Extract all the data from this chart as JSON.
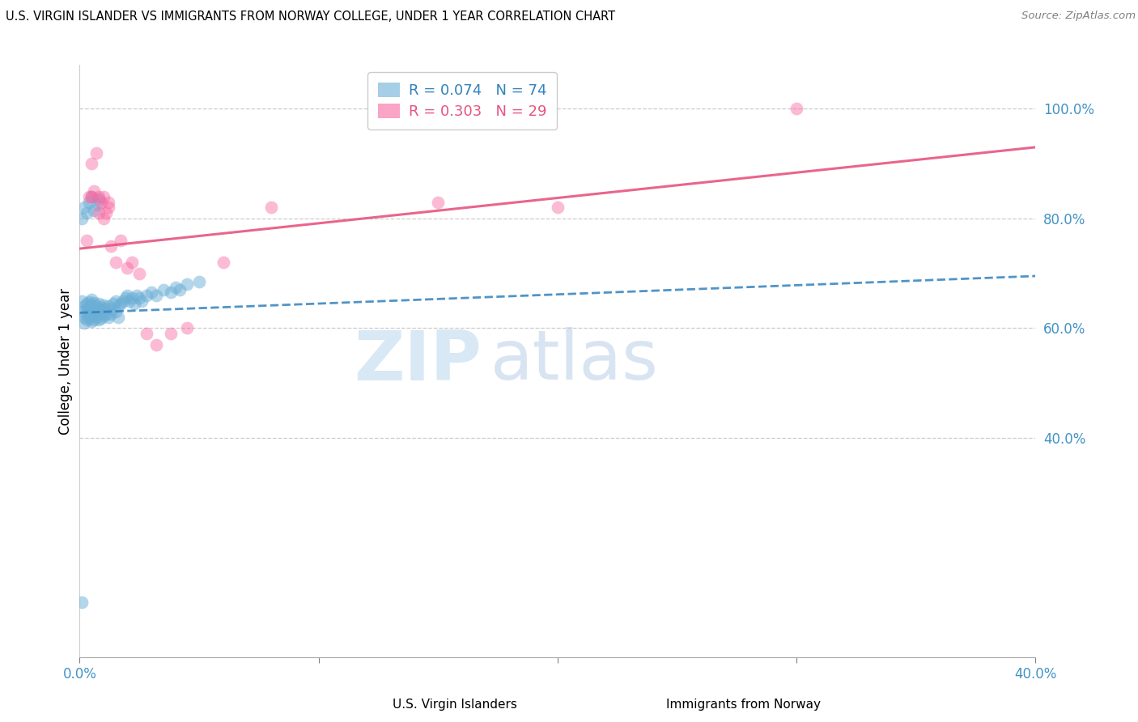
{
  "title": "U.S. VIRGIN ISLANDER VS IMMIGRANTS FROM NORWAY COLLEGE, UNDER 1 YEAR CORRELATION CHART",
  "source": "Source: ZipAtlas.com",
  "ylabel": "College, Under 1 year",
  "x_min": 0.0,
  "x_max": 0.4,
  "y_min": 0.0,
  "y_max": 1.08,
  "x_ticks": [
    0.0,
    0.1,
    0.2,
    0.3,
    0.4
  ],
  "x_tick_labels": [
    "0.0%",
    "",
    "",
    "",
    "40.0%"
  ],
  "y_ticks_right": [
    0.4,
    0.6,
    0.8,
    1.0
  ],
  "y_tick_labels_right": [
    "40.0%",
    "60.0%",
    "80.0%",
    "100.0%"
  ],
  "legend_blue_r": "0.074",
  "legend_blue_n": "74",
  "legend_pink_r": "0.303",
  "legend_pink_n": "29",
  "legend_label_blue": "U.S. Virgin Islanders",
  "legend_label_pink": "Immigrants from Norway",
  "blue_color": "#6baed6",
  "pink_color": "#f768a1",
  "blue_line_color": "#3182bd",
  "pink_line_color": "#e75480",
  "watermark_zip": "ZIP",
  "watermark_atlas": "atlas",
  "blue_scatter_x": [
    0.001,
    0.001,
    0.002,
    0.002,
    0.002,
    0.003,
    0.003,
    0.003,
    0.003,
    0.004,
    0.004,
    0.004,
    0.004,
    0.005,
    0.005,
    0.005,
    0.005,
    0.005,
    0.006,
    0.006,
    0.006,
    0.006,
    0.007,
    0.007,
    0.007,
    0.008,
    0.008,
    0.008,
    0.008,
    0.009,
    0.009,
    0.009,
    0.01,
    0.01,
    0.01,
    0.011,
    0.011,
    0.012,
    0.012,
    0.013,
    0.013,
    0.014,
    0.015,
    0.015,
    0.016,
    0.016,
    0.017,
    0.018,
    0.019,
    0.02,
    0.021,
    0.022,
    0.023,
    0.024,
    0.025,
    0.026,
    0.028,
    0.03,
    0.032,
    0.035,
    0.038,
    0.04,
    0.042,
    0.045,
    0.05,
    0.001,
    0.002,
    0.003,
    0.004,
    0.005,
    0.006,
    0.007,
    0.008,
    0.001
  ],
  "blue_scatter_y": [
    0.63,
    0.65,
    0.62,
    0.64,
    0.61,
    0.625,
    0.635,
    0.645,
    0.615,
    0.628,
    0.618,
    0.638,
    0.648,
    0.632,
    0.622,
    0.642,
    0.612,
    0.652,
    0.626,
    0.636,
    0.616,
    0.646,
    0.63,
    0.62,
    0.64,
    0.625,
    0.635,
    0.615,
    0.645,
    0.628,
    0.618,
    0.638,
    0.632,
    0.622,
    0.642,
    0.626,
    0.636,
    0.62,
    0.64,
    0.625,
    0.635,
    0.645,
    0.63,
    0.65,
    0.64,
    0.62,
    0.645,
    0.65,
    0.655,
    0.66,
    0.65,
    0.655,
    0.645,
    0.66,
    0.655,
    0.65,
    0.66,
    0.665,
    0.66,
    0.67,
    0.665,
    0.675,
    0.67,
    0.68,
    0.685,
    0.8,
    0.82,
    0.81,
    0.83,
    0.84,
    0.815,
    0.825,
    0.835,
    0.1
  ],
  "pink_scatter_x": [
    0.003,
    0.004,
    0.005,
    0.005,
    0.006,
    0.007,
    0.008,
    0.008,
    0.009,
    0.01,
    0.01,
    0.011,
    0.012,
    0.012,
    0.013,
    0.015,
    0.017,
    0.02,
    0.022,
    0.025,
    0.028,
    0.032,
    0.038,
    0.045,
    0.06,
    0.08,
    0.15,
    0.2,
    0.3
  ],
  "pink_scatter_y": [
    0.76,
    0.84,
    0.9,
    0.84,
    0.85,
    0.92,
    0.81,
    0.84,
    0.83,
    0.8,
    0.84,
    0.81,
    0.82,
    0.83,
    0.75,
    0.72,
    0.76,
    0.71,
    0.72,
    0.7,
    0.59,
    0.57,
    0.59,
    0.6,
    0.72,
    0.82,
    0.83,
    0.82,
    1.0
  ],
  "blue_trend_x0": 0.0,
  "blue_trend_y0": 0.628,
  "blue_trend_x1": 0.4,
  "blue_trend_y1": 0.695,
  "pink_trend_x0": 0.0,
  "pink_trend_y0": 0.745,
  "pink_trend_x1": 0.4,
  "pink_trend_y1": 0.93
}
